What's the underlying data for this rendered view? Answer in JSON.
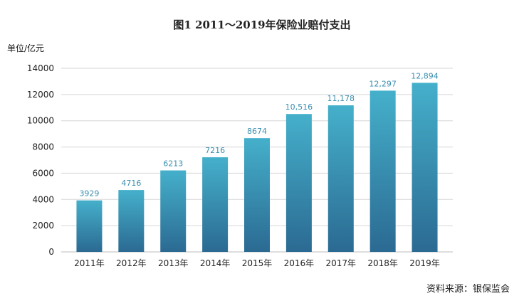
{
  "chart_data": {
    "type": "bar",
    "title": "图1  2011～2019年保险业赔付支出",
    "ylabel": "单位/亿元",
    "xlabel": "",
    "categories": [
      "2011年",
      "2012年",
      "2013年",
      "2014年",
      "2015年",
      "2016年",
      "2017年",
      "2018年",
      "2019年"
    ],
    "values": [
      3929,
      4716,
      6213,
      7216,
      8674,
      10516,
      11178,
      12297,
      12894
    ],
    "data_labels": [
      "3929",
      "4716",
      "6213",
      "7216",
      "8674",
      "10,516",
      "11,178",
      "12,297",
      "12,894"
    ],
    "ylim": [
      0,
      14000
    ],
    "yticks": [
      0,
      2000,
      4000,
      6000,
      8000,
      10000,
      12000,
      14000
    ],
    "grid": true,
    "colors": {
      "bar_top": "#45b0cb",
      "bar_bottom": "#2b6a92",
      "label": "#3a8fb0"
    }
  },
  "source": "资料来源：银保监会"
}
